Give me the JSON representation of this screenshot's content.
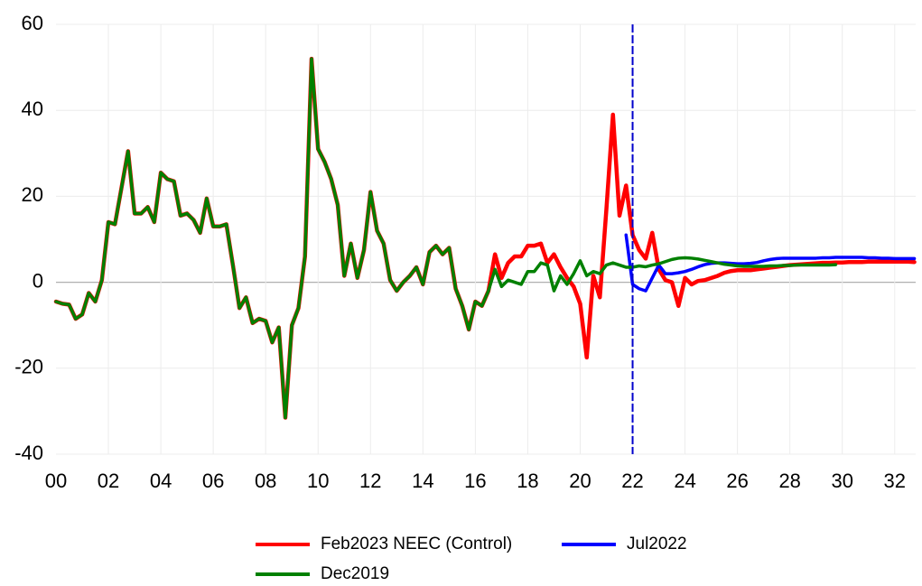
{
  "chart_data": {
    "type": "line",
    "x": [
      2000,
      2000.25,
      2000.5,
      2000.75,
      2001,
      2001.25,
      2001.5,
      2001.75,
      2002,
      2002.25,
      2002.5,
      2002.75,
      2003,
      2003.25,
      2003.5,
      2003.75,
      2004,
      2004.25,
      2004.5,
      2004.75,
      2005,
      2005.25,
      2005.5,
      2005.75,
      2006,
      2006.25,
      2006.5,
      2006.75,
      2007,
      2007.25,
      2007.5,
      2007.75,
      2008,
      2008.25,
      2008.5,
      2008.75,
      2009,
      2009.25,
      2009.5,
      2009.75,
      2010,
      2010.25,
      2010.5,
      2010.75,
      2011,
      2011.25,
      2011.5,
      2011.75,
      2012,
      2012.25,
      2012.5,
      2012.75,
      2013,
      2013.25,
      2013.5,
      2013.75,
      2014,
      2014.25,
      2014.5,
      2014.75,
      2015,
      2015.25,
      2015.5,
      2015.75,
      2016,
      2016.25,
      2016.5,
      2016.75,
      2017,
      2017.25,
      2017.5,
      2017.75,
      2018,
      2018.25,
      2018.5,
      2018.75,
      2019,
      2019.25,
      2019.5,
      2019.75,
      2020,
      2020.25,
      2020.5,
      2020.75,
      2021,
      2021.25,
      2021.5,
      2021.75,
      2022,
      2022.25,
      2022.5,
      2022.75,
      2023,
      2023.25,
      2023.5,
      2023.75,
      2024,
      2024.25,
      2024.5,
      2024.75,
      2025,
      2025.25,
      2025.5,
      2025.75,
      2026,
      2026.25,
      2026.5,
      2026.75,
      2027,
      2027.25,
      2027.5,
      2027.75,
      2028,
      2028.25,
      2028.5,
      2028.75,
      2029,
      2029.25,
      2029.5,
      2029.75,
      2030,
      2030.25,
      2030.5,
      2030.75,
      2031,
      2031.25,
      2031.5,
      2031.75,
      2032,
      2032.25,
      2032.5,
      2032.75
    ],
    "series": [
      {
        "name": "Feb2023 NEEC (Control)",
        "color": "#ff0000",
        "width": 4.5,
        "values": [
          -4.5,
          -5,
          -5.2,
          -8.5,
          -7.5,
          -2.5,
          -4.5,
          0.5,
          14,
          13.5,
          22,
          30.5,
          16,
          16,
          17.5,
          14,
          25.5,
          24,
          23.5,
          15.5,
          16,
          14.5,
          11.5,
          19.5,
          13,
          13,
          13.5,
          4,
          -6,
          -3.5,
          -9.5,
          -8.5,
          -9,
          -14,
          -10.5,
          -31.5,
          -10,
          -6,
          6,
          52,
          31,
          28,
          24,
          18,
          1.5,
          9,
          1,
          7.5,
          21,
          12,
          9,
          0.5,
          -2,
          0,
          1.5,
          3.5,
          -0.5,
          7,
          8.5,
          6.5,
          8,
          -1.5,
          -5.5,
          -11,
          -4.5,
          -5.5,
          -2,
          6.5,
          1,
          4.5,
          6,
          6,
          8.5,
          8.5,
          9,
          4.5,
          6.5,
          3.5,
          1,
          -1,
          -5,
          -17.5,
          1.5,
          -3.5,
          17,
          39,
          15.5,
          22.5,
          11,
          7.5,
          5.5,
          11.5,
          3,
          0.5,
          0,
          -5.5,
          1,
          -0.5,
          0.3,
          0.5,
          1,
          1.5,
          2.2,
          2.6,
          2.8,
          2.8,
          2.8,
          3.0,
          3.2,
          3.4,
          3.6,
          3.8,
          4.0,
          4.1,
          4.2,
          4.3,
          4.4,
          4.5,
          4.5,
          4.6,
          4.6,
          4.7,
          4.7,
          4.7,
          4.8,
          4.8,
          4.8,
          4.8,
          4.8,
          4.8,
          4.8,
          4.7
        ]
      },
      {
        "name": "Jul2022",
        "color": "#0000ff",
        "width": 3.5,
        "values": [
          null,
          null,
          null,
          null,
          null,
          null,
          null,
          null,
          null,
          null,
          null,
          null,
          null,
          null,
          null,
          null,
          null,
          null,
          null,
          null,
          null,
          null,
          null,
          null,
          null,
          null,
          null,
          null,
          null,
          null,
          null,
          null,
          null,
          null,
          null,
          null,
          null,
          null,
          null,
          null,
          null,
          null,
          null,
          null,
          null,
          null,
          null,
          null,
          null,
          null,
          null,
          null,
          null,
          null,
          null,
          null,
          null,
          null,
          null,
          null,
          null,
          null,
          null,
          null,
          null,
          null,
          null,
          null,
          null,
          null,
          null,
          null,
          null,
          null,
          null,
          null,
          null,
          null,
          null,
          null,
          null,
          null,
          null,
          null,
          null,
          null,
          null,
          11,
          -0.5,
          -1.5,
          -2,
          1,
          4,
          2,
          2,
          2.2,
          2.5,
          3,
          3.6,
          4.1,
          4.4,
          4.5,
          4.5,
          4.4,
          4.3,
          4.3,
          4.4,
          4.6,
          5.0,
          5.3,
          5.5,
          5.6,
          5.6,
          5.6,
          5.6,
          5.6,
          5.6,
          5.7,
          5.7,
          5.8,
          5.8,
          5.8,
          5.8,
          5.8,
          5.7,
          5.7,
          5.6,
          5.6,
          5.5,
          5.5,
          5.5,
          5.5
        ]
      },
      {
        "name": "Dec2019",
        "color": "#008000",
        "width": 3.5,
        "values": [
          -4.5,
          -5,
          -5.2,
          -8.5,
          -7.5,
          -2.5,
          -4.5,
          0.5,
          14,
          13.5,
          22,
          30.5,
          16,
          16,
          17.5,
          14,
          25.5,
          24,
          23.5,
          15.5,
          16,
          14.5,
          11.5,
          19.5,
          13,
          13,
          13.5,
          4,
          -6,
          -3.5,
          -9.5,
          -8.5,
          -9,
          -14,
          -10.5,
          -31.5,
          -10,
          -6,
          6,
          52,
          31,
          28,
          24,
          18,
          1.5,
          9,
          1,
          7.5,
          21,
          12,
          9,
          0.5,
          -2,
          0,
          1.5,
          3.5,
          -0.5,
          7,
          8.5,
          6.5,
          8,
          -1.5,
          -5.5,
          -11,
          -4.5,
          -5.5,
          -2,
          3,
          -1,
          0.5,
          0,
          -0.5,
          2.5,
          2.5,
          4.5,
          4,
          -2,
          1.5,
          -0.5,
          2,
          5,
          1.5,
          2.5,
          2,
          4,
          4.5,
          4,
          3.5,
          3.5,
          3.8,
          3.6,
          4,
          4.3,
          4.8,
          5.3,
          5.6,
          5.7,
          5.6,
          5.4,
          5.1,
          4.8,
          4.5,
          4.2,
          4.0,
          3.8,
          3.7,
          3.7,
          3.7,
          3.7,
          3.8,
          3.8,
          3.9,
          3.9,
          4.0,
          4.0,
          4.0,
          4.0,
          4.0,
          4.0,
          4.1,
          null,
          null,
          null,
          null,
          null,
          null,
          null,
          null,
          null,
          null,
          null,
          null
        ]
      }
    ],
    "xlim": [
      2000,
      2032.8
    ],
    "xticks": [
      {
        "value": 2000,
        "label": "00"
      },
      {
        "value": 2002,
        "label": "02"
      },
      {
        "value": 2004,
        "label": "04"
      },
      {
        "value": 2006,
        "label": "06"
      },
      {
        "value": 2008,
        "label": "08"
      },
      {
        "value": 2010,
        "label": "10"
      },
      {
        "value": 2012,
        "label": "12"
      },
      {
        "value": 2014,
        "label": "14"
      },
      {
        "value": 2016,
        "label": "16"
      },
      {
        "value": 2018,
        "label": "18"
      },
      {
        "value": 2020,
        "label": "20"
      },
      {
        "value": 2022,
        "label": "22"
      },
      {
        "value": 2024,
        "label": "24"
      },
      {
        "value": 2026,
        "label": "26"
      },
      {
        "value": 2028,
        "label": "28"
      },
      {
        "value": 2030,
        "label": "30"
      },
      {
        "value": 2032,
        "label": "32"
      }
    ],
    "ylim": [
      -40,
      60
    ],
    "yticks": [
      -40,
      -20,
      0,
      20,
      40,
      60
    ],
    "grid": true,
    "vline": {
      "x": 2022,
      "color": "#0000cc"
    },
    "legend": "bottom"
  }
}
